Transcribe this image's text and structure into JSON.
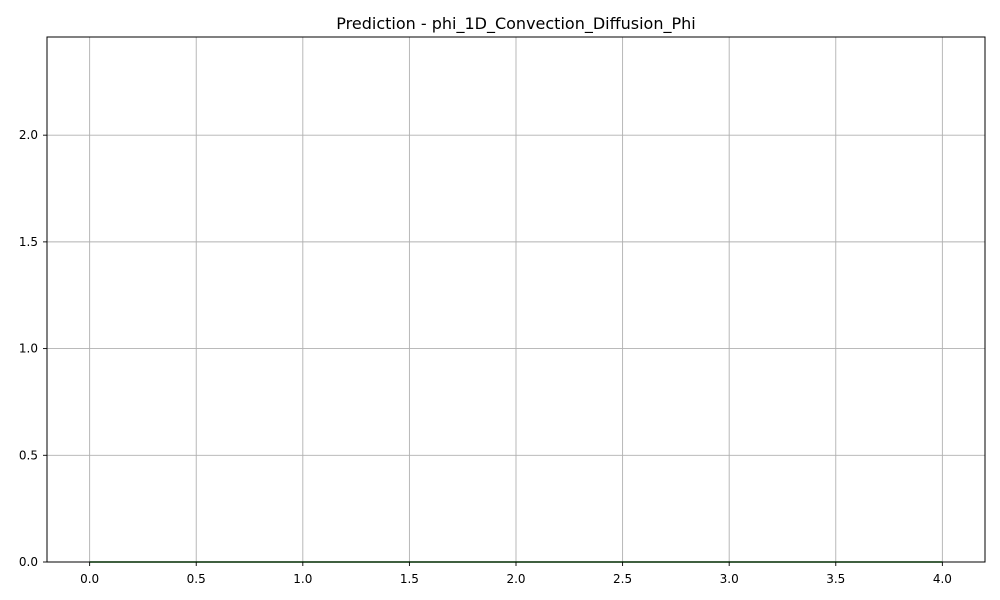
{
  "chart_data": {
    "type": "line",
    "title": "Prediction - phi_1D_Convection_Diffusion_Phi",
    "xlabel": "",
    "ylabel": "",
    "xlim": [
      -0.2,
      4.2
    ],
    "ylim": [
      0,
      2.46
    ],
    "grid": true,
    "x_ticks": [
      0.0,
      0.5,
      1.0,
      1.5,
      2.0,
      2.5,
      3.0,
      3.5,
      4.0
    ],
    "x_tick_labels": [
      "0.0",
      "0.5",
      "1.0",
      "1.5",
      "2.0",
      "2.5",
      "3.0",
      "3.5",
      "4.0"
    ],
    "y_ticks": [
      0.0,
      0.5,
      1.0,
      1.5,
      2.0
    ],
    "y_tick_labels": [
      "0.0",
      "0.5",
      "1.0",
      "1.5",
      "2.0"
    ],
    "series": [
      {
        "color": "#008000",
        "x": [
          0.0,
          0.5,
          1.0,
          1.5,
          2.0,
          2.5,
          3.0,
          3.5,
          4.0
        ],
        "y": [
          0.0,
          0.0,
          0.0,
          0.0,
          0.0,
          0.0,
          0.0,
          0.0,
          0.0
        ]
      }
    ]
  }
}
